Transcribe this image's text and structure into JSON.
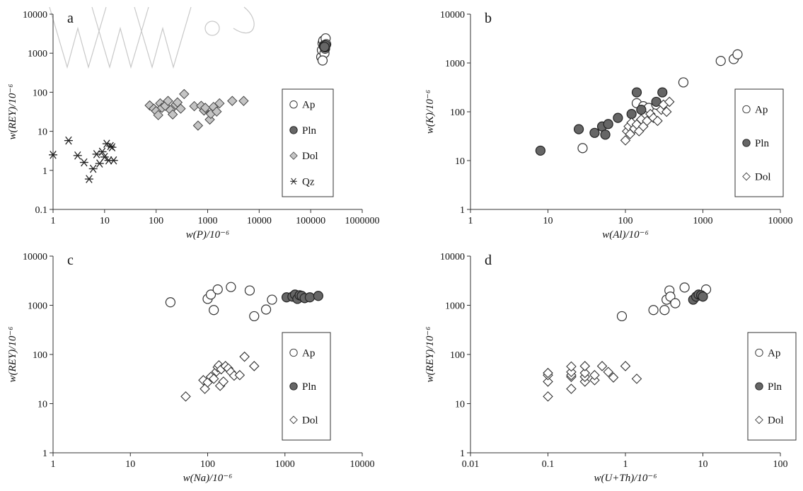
{
  "chart_data": [
    {
      "id": "a",
      "type": "scatter",
      "panel_label": "a",
      "xlabel": "w(P)/10⁻⁶",
      "ylabel": "w(REY)/10⁻⁶",
      "x_scale": "log",
      "y_scale": "log",
      "xlim": [
        1,
        1000000
      ],
      "ylim": [
        0.1,
        10000
      ],
      "x_ticks": [
        1,
        10,
        100,
        1000,
        10000,
        100000,
        1000000
      ],
      "x_tick_labels": [
        "1",
        "10",
        "100",
        "1000",
        "10000",
        "100000",
        "1000000"
      ],
      "y_ticks": [
        0.1,
        1,
        10,
        100,
        1000,
        10000
      ],
      "y_tick_labels": [
        "0.1",
        "1",
        "10",
        "100",
        "1000",
        "10000"
      ],
      "legend_position": "right",
      "series": [
        {
          "name": "Ap",
          "marker": "circle-open",
          "points": [
            [
              160000,
              800
            ],
            [
              165000,
              1200
            ],
            [
              170000,
              1800
            ],
            [
              175000,
              2100
            ],
            [
              180000,
              1500
            ],
            [
              185000,
              1000
            ],
            [
              190000,
              1300
            ],
            [
              195000,
              2400
            ],
            [
              200000,
              1700
            ],
            [
              170000,
              650
            ],
            [
              182000,
              1600
            ]
          ]
        },
        {
          "name": "Pln",
          "marker": "circle-filled",
          "points": [
            [
              180000,
              1500
            ],
            [
              190000,
              1400
            ],
            [
              195000,
              1600
            ],
            [
              185000,
              1450
            ]
          ]
        },
        {
          "name": "Dol",
          "marker": "diamond-grey",
          "points": [
            [
              75,
              46
            ],
            [
              90,
              38
            ],
            [
              100,
              33
            ],
            [
              110,
              26
            ],
            [
              120,
              52
            ],
            [
              130,
              40
            ],
            [
              150,
              45
            ],
            [
              170,
              60
            ],
            [
              190,
              35
            ],
            [
              210,
              27
            ],
            [
              240,
              48
            ],
            [
              260,
              55
            ],
            [
              300,
              38
            ],
            [
              350,
              90
            ],
            [
              550,
              44
            ],
            [
              650,
              14
            ],
            [
              750,
              45
            ],
            [
              850,
              34
            ],
            [
              900,
              40
            ],
            [
              1100,
              20
            ],
            [
              1150,
              28
            ],
            [
              1300,
              42
            ],
            [
              1500,
              32
            ],
            [
              1700,
              52
            ],
            [
              3000,
              60
            ],
            [
              5000,
              60
            ]
          ]
        },
        {
          "name": "Qz",
          "marker": "asterisk",
          "points": [
            [
              1,
              2.5
            ],
            [
              2,
              5.8
            ],
            [
              3,
              2.4
            ],
            [
              4,
              1.6
            ],
            [
              5,
              0.6
            ],
            [
              6,
              1.1
            ],
            [
              7,
              2.6
            ],
            [
              8,
              1.5
            ],
            [
              9,
              3.0
            ],
            [
              10,
              2.2
            ],
            [
              11,
              4.8
            ],
            [
              12,
              1.8
            ],
            [
              13,
              4.2
            ],
            [
              14,
              3.9
            ],
            [
              15,
              1.8
            ]
          ]
        }
      ],
      "legend": [
        "Ap",
        "Pln",
        "Dol",
        "Qz"
      ]
    },
    {
      "id": "b",
      "type": "scatter",
      "panel_label": "b",
      "xlabel": "w(Al)/10⁻⁶",
      "ylabel": "w(K)/10⁻⁶",
      "x_scale": "log",
      "y_scale": "log",
      "xlim": [
        1,
        10000
      ],
      "ylim": [
        1,
        10000
      ],
      "x_ticks": [
        1,
        10,
        100,
        1000,
        10000
      ],
      "x_tick_labels": [
        "1",
        "10",
        "100",
        "1000",
        "10000"
      ],
      "y_ticks": [
        1,
        10,
        100,
        1000,
        10000
      ],
      "y_tick_labels": [
        "1",
        "10",
        "100",
        "1000",
        "10000"
      ],
      "legend_position": "right",
      "series": [
        {
          "name": "Ap",
          "marker": "circle-open",
          "points": [
            [
              28,
              18
            ],
            [
              140,
              150
            ],
            [
              170,
              130
            ],
            [
              200,
              120
            ],
            [
              250,
              140
            ],
            [
              560,
              400
            ],
            [
              1700,
              1100
            ],
            [
              2500,
              1200
            ],
            [
              2800,
              1500
            ]
          ]
        },
        {
          "name": "Pln",
          "marker": "circle-filled",
          "points": [
            [
              8,
              16
            ],
            [
              25,
              44
            ],
            [
              40,
              37
            ],
            [
              50,
              50
            ],
            [
              55,
              34
            ],
            [
              60,
              56
            ],
            [
              80,
              75
            ],
            [
              120,
              90
            ],
            [
              140,
              250
            ],
            [
              160,
              110
            ],
            [
              250,
              160
            ],
            [
              300,
              250
            ]
          ]
        },
        {
          "name": "Dol",
          "marker": "diamond-white",
          "points": [
            [
              100,
              26
            ],
            [
              105,
              40
            ],
            [
              110,
              50
            ],
            [
              115,
              35
            ],
            [
              120,
              60
            ],
            [
              130,
              45
            ],
            [
              140,
              55
            ],
            [
              150,
              40
            ],
            [
              160,
              70
            ],
            [
              170,
              50
            ],
            [
              190,
              65
            ],
            [
              210,
              90
            ],
            [
              230,
              75
            ],
            [
              260,
              65
            ],
            [
              290,
              110
            ],
            [
              310,
              140
            ],
            [
              340,
              100
            ],
            [
              370,
              160
            ]
          ]
        }
      ],
      "legend": [
        "Ap",
        "Pln",
        "Dol"
      ]
    },
    {
      "id": "c",
      "type": "scatter",
      "panel_label": "c",
      "xlabel": "w(Na)/10⁻⁶",
      "ylabel": "w(REY)/10⁻⁶",
      "x_scale": "log",
      "y_scale": "log",
      "xlim": [
        1,
        10000
      ],
      "ylim": [
        1,
        10000
      ],
      "x_ticks": [
        1,
        10,
        100,
        1000,
        10000
      ],
      "x_tick_labels": [
        "1",
        "10",
        "100",
        "1000",
        "10000"
      ],
      "y_ticks": [
        1,
        10,
        100,
        1000,
        10000
      ],
      "y_tick_labels": [
        "1",
        "10",
        "100",
        "1000",
        "10000"
      ],
      "legend_position": "right",
      "series": [
        {
          "name": "Ap",
          "marker": "circle-open",
          "points": [
            [
              33,
              1150
            ],
            [
              100,
              1350
            ],
            [
              110,
              1650
            ],
            [
              120,
              800
            ],
            [
              135,
              2100
            ],
            [
              200,
              2350
            ],
            [
              350,
              2000
            ],
            [
              400,
              600
            ],
            [
              570,
              820
            ],
            [
              680,
              1300
            ]
          ]
        },
        {
          "name": "Pln",
          "marker": "circle-filled",
          "points": [
            [
              1050,
              1450
            ],
            [
              1250,
              1500
            ],
            [
              1350,
              1650
            ],
            [
              1450,
              1350
            ],
            [
              1550,
              1600
            ],
            [
              1650,
              1550
            ],
            [
              1800,
              1400
            ],
            [
              2100,
              1450
            ],
            [
              2700,
              1550
            ]
          ]
        },
        {
          "name": "Dol",
          "marker": "diamond-white",
          "points": [
            [
              52,
              14
            ],
            [
              88,
              30
            ],
            [
              92,
              20
            ],
            [
              100,
              27
            ],
            [
              110,
              35
            ],
            [
              120,
              32
            ],
            [
              130,
              45
            ],
            [
              135,
              55
            ],
            [
              140,
              60
            ],
            [
              145,
              23
            ],
            [
              150,
              50
            ],
            [
              160,
              28
            ],
            [
              170,
              58
            ],
            [
              185,
              52
            ],
            [
              200,
              44
            ],
            [
              220,
              37
            ],
            [
              260,
              38
            ],
            [
              300,
              90
            ],
            [
              400,
              58
            ]
          ]
        }
      ],
      "legend": [
        "Ap",
        "Pln",
        "Dol"
      ]
    },
    {
      "id": "d",
      "type": "scatter",
      "panel_label": "d",
      "xlabel": "w(U+Th)/10⁻⁶",
      "ylabel": "w(REY)/10⁻⁶",
      "x_scale": "log",
      "y_scale": "log",
      "xlim": [
        0.01,
        100
      ],
      "ylim": [
        1,
        10000
      ],
      "x_ticks": [
        0.01,
        0.1,
        1,
        10,
        100
      ],
      "x_tick_labels": [
        "0.01",
        "0.1",
        "1",
        "10",
        "100"
      ],
      "y_ticks": [
        1,
        10,
        100,
        1000,
        10000
      ],
      "y_tick_labels": [
        "1",
        "10",
        "100",
        "1000",
        "10000"
      ],
      "legend_position": "right",
      "series": [
        {
          "name": "Ap",
          "marker": "circle-open",
          "points": [
            [
              0.9,
              600
            ],
            [
              2.3,
              800
            ],
            [
              3.2,
              800
            ],
            [
              3.4,
              1300
            ],
            [
              3.7,
              2000
            ],
            [
              3.8,
              1500
            ],
            [
              4.4,
              1100
            ],
            [
              5.8,
              2300
            ],
            [
              11,
              2100
            ]
          ]
        },
        {
          "name": "Pln",
          "marker": "circle-filled",
          "points": [
            [
              7.5,
              1300
            ],
            [
              8.2,
              1500
            ],
            [
              8.8,
              1650
            ],
            [
              9.5,
              1600
            ],
            [
              10,
              1500
            ]
          ]
        },
        {
          "name": "Dol",
          "marker": "diamond-white",
          "points": [
            [
              0.1,
              14
            ],
            [
              0.1,
              28
            ],
            [
              0.1,
              38
            ],
            [
              0.1,
              42
            ],
            [
              0.2,
              20
            ],
            [
              0.2,
              35
            ],
            [
              0.2,
              38
            ],
            [
              0.2,
              44
            ],
            [
              0.2,
              57
            ],
            [
              0.3,
              28
            ],
            [
              0.3,
              35
            ],
            [
              0.3,
              42
            ],
            [
              0.3,
              58
            ],
            [
              0.4,
              30
            ],
            [
              0.4,
              38
            ],
            [
              0.5,
              58
            ],
            [
              0.6,
              44
            ],
            [
              0.7,
              34
            ],
            [
              1.0,
              58
            ],
            [
              1.4,
              32
            ]
          ]
        }
      ],
      "legend": [
        "Ap",
        "Pln",
        "Dol"
      ]
    }
  ]
}
